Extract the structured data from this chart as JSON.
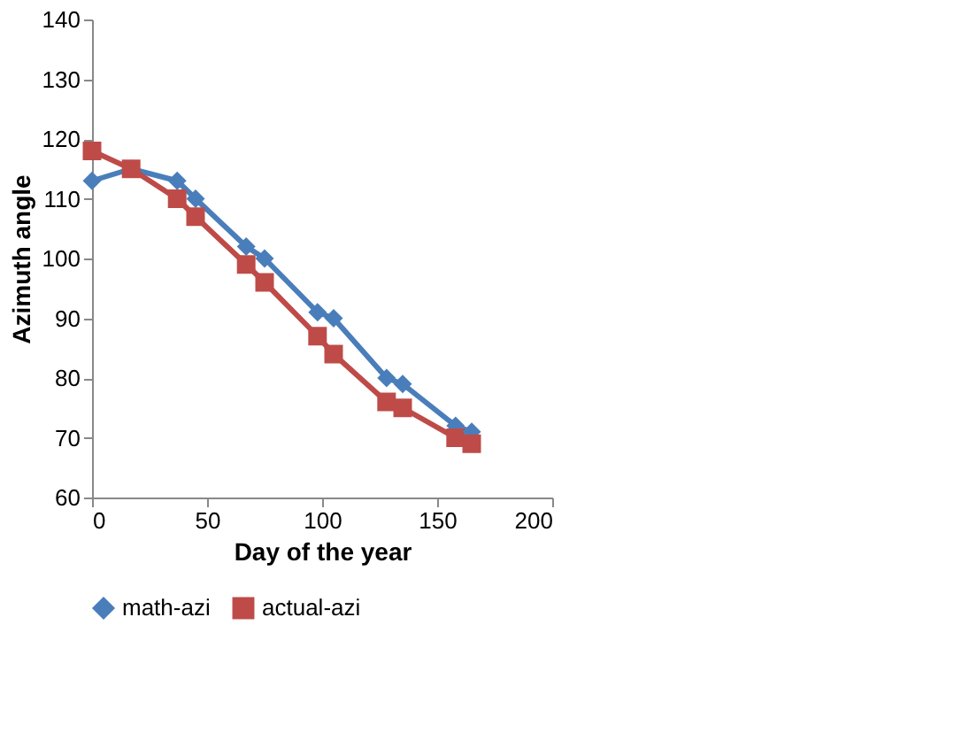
{
  "chart_data": {
    "type": "line",
    "xlabel": "Day of the year",
    "ylabel": "Azimuth angle",
    "xlim": [
      0,
      200
    ],
    "xticks": [
      0,
      50,
      100,
      150,
      200
    ],
    "ylim": [
      60,
      140
    ],
    "yticks": [
      60,
      70,
      80,
      90,
      100,
      110,
      120,
      130,
      140
    ],
    "grid": false,
    "legend": "bottom",
    "line_style": "solid",
    "series": [
      {
        "name": "math-azi",
        "color": "#4a7ebb",
        "marker": "diamond",
        "x": [
          0,
          17,
          37,
          45,
          67,
          75,
          98,
          105,
          128,
          135,
          158,
          165
        ],
        "values": [
          113,
          115,
          113,
          110,
          102,
          100,
          91,
          90,
          80,
          79,
          72,
          71
        ]
      },
      {
        "name": "actual-azi",
        "color": "#be4b48",
        "marker": "square",
        "x": [
          0,
          17,
          37,
          45,
          67,
          75,
          98,
          105,
          128,
          135,
          158,
          165
        ],
        "values": [
          118,
          115,
          110,
          107,
          99,
          96,
          87,
          84,
          76,
          75,
          70,
          69
        ]
      }
    ]
  }
}
